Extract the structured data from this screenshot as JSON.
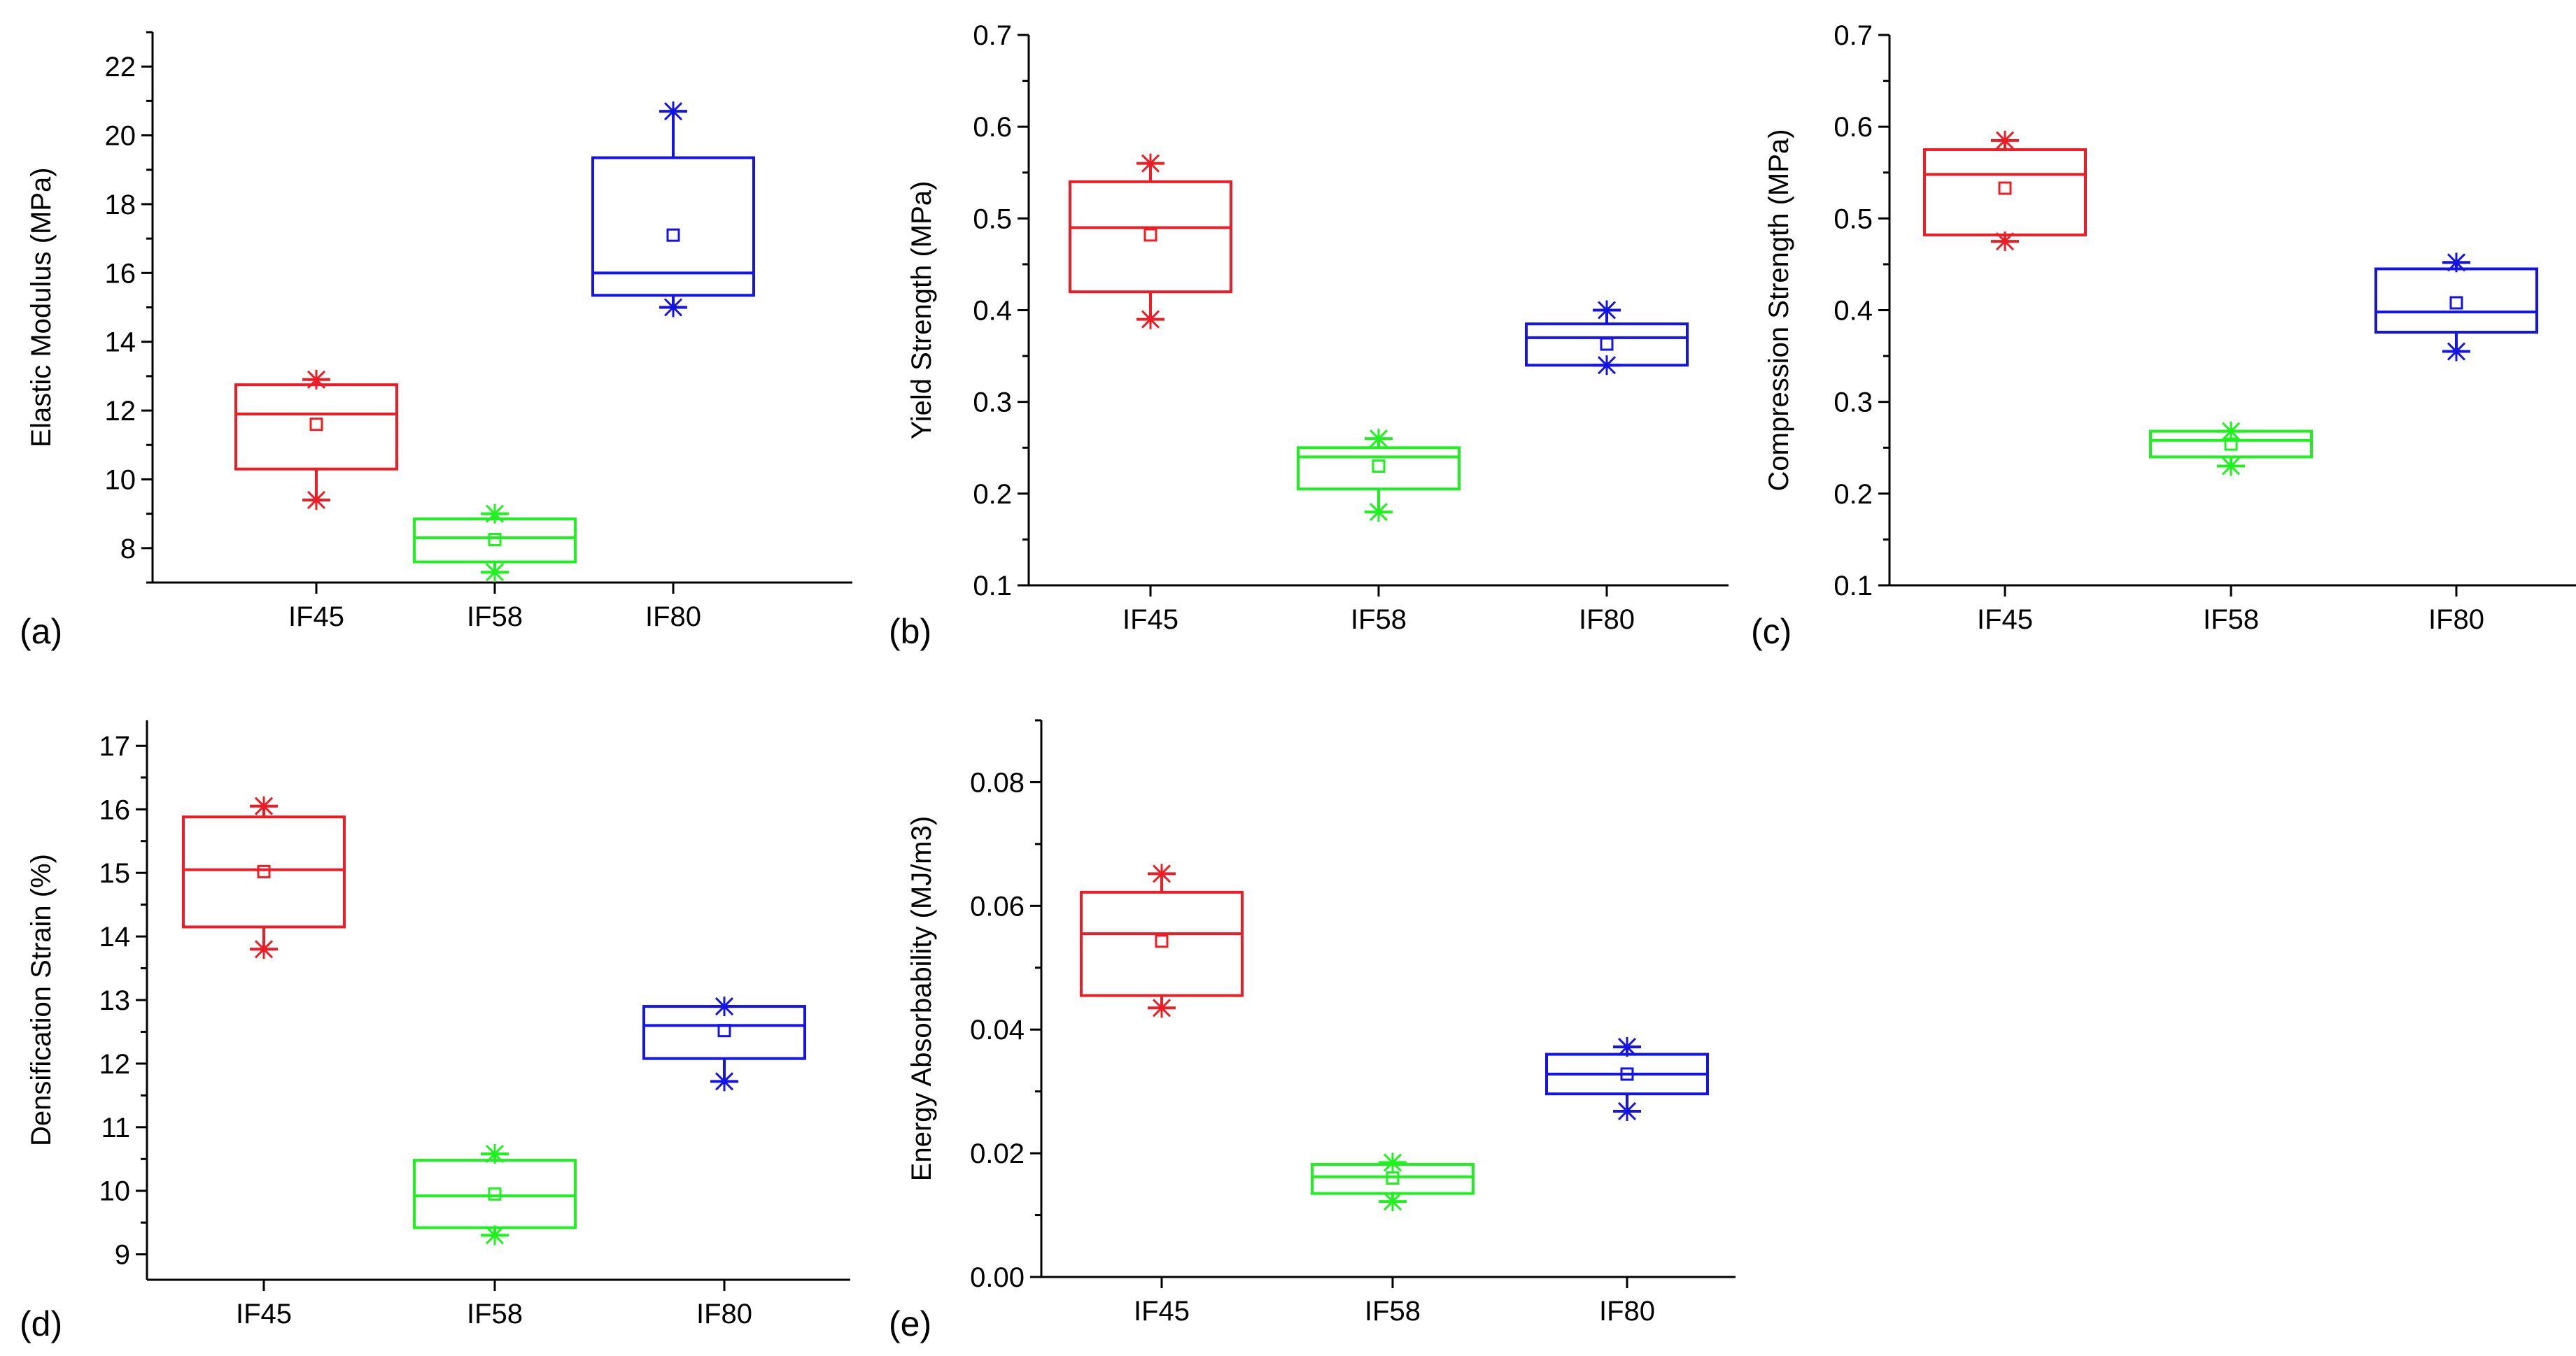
{
  "figure": {
    "panels": [
      {
        "label": "(a)",
        "ylabel": "Elastic Modulus (MPa)"
      },
      {
        "label": "(b)",
        "ylabel": "Yield Strength (MPa)"
      },
      {
        "label": "(c)",
        "ylabel": "Compression Strength (MPa)"
      },
      {
        "label": "(d)",
        "ylabel": "Densification Strain (%)"
      },
      {
        "label": "(e)",
        "ylabel": "Energy Absorbability (MJ/m3)"
      }
    ]
  },
  "colors": {
    "IF45": "#ee1c24",
    "IF58": "#1ef21e",
    "IF80": "#1414e6",
    "axis": "#000000"
  },
  "chart_data": [
    {
      "type": "box",
      "panel": "(a)",
      "title": "",
      "xlabel": "",
      "ylabel": "Elastic Modulus (MPa)",
      "categories": [
        "IF45",
        "IF58",
        "IF80"
      ],
      "ylim": [
        7,
        23
      ],
      "yticks": [
        8,
        10,
        12,
        14,
        16,
        18,
        20,
        22
      ],
      "tick_decimals": 0,
      "boxes": [
        {
          "name": "IF45",
          "q1": 10.3,
          "median": 11.9,
          "q3": 12.75,
          "mean": 11.6,
          "whisker_low": 9.4,
          "whisker_high": 12.9,
          "min": 9.4,
          "max": 12.9
        },
        {
          "name": "IF58",
          "q1": 7.6,
          "median": 8.3,
          "q3": 8.85,
          "mean": 8.25,
          "whisker_low": 7.3,
          "whisker_high": 9.0,
          "min": 7.3,
          "max": 9.0
        },
        {
          "name": "IF80",
          "q1": 15.35,
          "median": 16.0,
          "q3": 19.35,
          "mean": 17.1,
          "whisker_low": 15.0,
          "whisker_high": 20.7,
          "min": 15.0,
          "max": 20.7
        }
      ]
    },
    {
      "type": "box",
      "panel": "(b)",
      "title": "",
      "xlabel": "",
      "ylabel": "Yield Strength (MPa)",
      "categories": [
        "IF45",
        "IF58",
        "IF80"
      ],
      "ylim": [
        0.1,
        0.7
      ],
      "yticks": [
        0.1,
        0.2,
        0.3,
        0.4,
        0.5,
        0.6,
        0.7
      ],
      "tick_decimals": 1,
      "boxes": [
        {
          "name": "IF45",
          "q1": 0.42,
          "median": 0.49,
          "q3": 0.54,
          "mean": 0.482,
          "whisker_low": 0.39,
          "whisker_high": 0.56,
          "min": 0.39,
          "max": 0.56
        },
        {
          "name": "IF58",
          "q1": 0.205,
          "median": 0.24,
          "q3": 0.25,
          "mean": 0.23,
          "whisker_low": 0.18,
          "whisker_high": 0.26,
          "min": 0.18,
          "max": 0.26
        },
        {
          "name": "IF80",
          "q1": 0.34,
          "median": 0.37,
          "q3": 0.385,
          "mean": 0.363,
          "whisker_low": 0.34,
          "whisker_high": 0.4,
          "min": 0.34,
          "max": 0.4
        }
      ]
    },
    {
      "type": "box",
      "panel": "(c)",
      "title": "",
      "xlabel": "",
      "ylabel": "Compression Strength (MPa)",
      "categories": [
        "IF45",
        "IF58",
        "IF80"
      ],
      "ylim": [
        0.1,
        0.7
      ],
      "yticks": [
        0.1,
        0.2,
        0.3,
        0.4,
        0.5,
        0.6,
        0.7
      ],
      "tick_decimals": 1,
      "boxes": [
        {
          "name": "IF45",
          "q1": 0.482,
          "median": 0.548,
          "q3": 0.575,
          "mean": 0.533,
          "whisker_low": 0.475,
          "whisker_high": 0.585,
          "min": 0.475,
          "max": 0.585
        },
        {
          "name": "IF58",
          "q1": 0.24,
          "median": 0.258,
          "q3": 0.268,
          "mean": 0.254,
          "whisker_low": 0.23,
          "whisker_high": 0.268,
          "min": 0.23,
          "max": 0.268
        },
        {
          "name": "IF80",
          "q1": 0.376,
          "median": 0.398,
          "q3": 0.445,
          "mean": 0.408,
          "whisker_low": 0.355,
          "whisker_high": 0.452,
          "min": 0.355,
          "max": 0.452
        }
      ]
    },
    {
      "type": "box",
      "panel": "(d)",
      "title": "",
      "xlabel": "",
      "ylabel": "Densification Strain (%)",
      "categories": [
        "IF45",
        "IF58",
        "IF80"
      ],
      "ylim": [
        8.6,
        17.4
      ],
      "yticks": [
        9,
        10,
        11,
        12,
        13,
        14,
        15,
        16,
        17
      ],
      "tick_decimals": 0,
      "boxes": [
        {
          "name": "IF45",
          "q1": 14.15,
          "median": 15.05,
          "q3": 15.88,
          "mean": 15.02,
          "whisker_low": 13.8,
          "whisker_high": 16.05,
          "min": 13.8,
          "max": 16.05
        },
        {
          "name": "IF58",
          "q1": 9.42,
          "median": 9.92,
          "q3": 10.48,
          "mean": 9.95,
          "whisker_low": 9.3,
          "whisker_high": 10.58,
          "min": 9.3,
          "max": 10.58
        },
        {
          "name": "IF80",
          "q1": 12.08,
          "median": 12.6,
          "q3": 12.9,
          "mean": 12.52,
          "whisker_low": 11.72,
          "whisker_high": 12.9,
          "min": 11.72,
          "max": 12.9
        }
      ]
    },
    {
      "type": "box",
      "panel": "(e)",
      "title": "",
      "xlabel": "",
      "ylabel": "Energy Absorbability (MJ/m3)",
      "categories": [
        "IF45",
        "IF58",
        "IF80"
      ],
      "ylim": [
        0,
        0.09
      ],
      "yticks": [
        0,
        0.02,
        0.04,
        0.06,
        0.08
      ],
      "tick_decimals": 2,
      "boxes": [
        {
          "name": "IF45",
          "q1": 0.0455,
          "median": 0.0555,
          "q3": 0.0622,
          "mean": 0.0543,
          "whisker_low": 0.0435,
          "whisker_high": 0.0652,
          "min": 0.0435,
          "max": 0.0652
        },
        {
          "name": "IF58",
          "q1": 0.0135,
          "median": 0.0162,
          "q3": 0.0182,
          "mean": 0.016,
          "whisker_low": 0.0122,
          "whisker_high": 0.0185,
          "min": 0.0122,
          "max": 0.0185
        },
        {
          "name": "IF80",
          "q1": 0.0296,
          "median": 0.0328,
          "q3": 0.036,
          "mean": 0.0328,
          "whisker_low": 0.0268,
          "whisker_high": 0.0372,
          "min": 0.0268,
          "max": 0.0372
        }
      ]
    }
  ]
}
